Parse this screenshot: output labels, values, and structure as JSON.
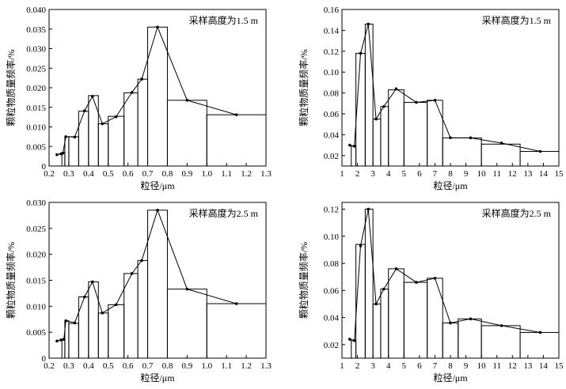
{
  "chart_data": [
    {
      "type": "histogram-line",
      "annotation": "采样高度为1.5 m",
      "xlabel": "粒径/μm",
      "ylabel": "颗粒物质量频率/%",
      "xlim": [
        0.2,
        1.3
      ],
      "ylim": [
        0,
        0.04
      ],
      "xticks": [
        "0.2",
        "0.3",
        "0.4",
        "0.5",
        "0.6",
        "0.7",
        "0.8",
        "0.9",
        "1.0",
        "1.1",
        "1.2",
        "1.3"
      ],
      "yticks": [
        "0",
        "0.005",
        "0.010",
        "0.015",
        "0.020",
        "0.025",
        "0.030",
        "0.035",
        "0.040"
      ],
      "bins": [
        {
          "x0": 0.265,
          "x1": 0.28,
          "y": 0.0035
        },
        {
          "x0": 0.28,
          "x1": 0.3,
          "y": 0.0075
        },
        {
          "x0": 0.3,
          "x1": 0.35,
          "y": 0.0075
        },
        {
          "x0": 0.35,
          "x1": 0.4,
          "y": 0.014
        },
        {
          "x0": 0.4,
          "x1": 0.45,
          "y": 0.018
        },
        {
          "x0": 0.45,
          "x1": 0.5,
          "y": 0.0108
        },
        {
          "x0": 0.5,
          "x1": 0.58,
          "y": 0.0127
        },
        {
          "x0": 0.58,
          "x1": 0.65,
          "y": 0.0187
        },
        {
          "x0": 0.65,
          "x1": 0.7,
          "y": 0.0222
        },
        {
          "x0": 0.7,
          "x1": 0.8,
          "y": 0.0355
        },
        {
          "x0": 0.8,
          "x1": 1.0,
          "y": 0.0168
        },
        {
          "x0": 1.0,
          "x1": 1.3,
          "y": 0.0131
        }
      ],
      "points": [
        [
          0.24,
          0.0029
        ],
        [
          0.26,
          0.0031
        ],
        [
          0.27,
          0.0033
        ],
        [
          0.285,
          0.0075
        ],
        [
          0.33,
          0.0074
        ],
        [
          0.38,
          0.0141
        ],
        [
          0.42,
          0.0178
        ],
        [
          0.47,
          0.0108
        ],
        [
          0.54,
          0.0126
        ],
        [
          0.62,
          0.0188
        ],
        [
          0.67,
          0.0222
        ],
        [
          0.75,
          0.0355
        ],
        [
          0.9,
          0.0168
        ],
        [
          1.15,
          0.0131
        ]
      ]
    },
    {
      "type": "histogram-line",
      "annotation": "采样高度为1.5 m",
      "xlabel": "粒径/μm",
      "ylabel": "颗粒物质量频率/%",
      "xlim": [
        1,
        15
      ],
      "ylim": [
        0.01,
        0.16
      ],
      "xticks": [
        "1",
        "2",
        "3",
        "4",
        "5",
        "6",
        "7",
        "8",
        "9",
        "10",
        "11",
        "12",
        "13",
        "14",
        "15"
      ],
      "yticks": [
        "0.02",
        "0.04",
        "0.06",
        "0.08",
        "0.10",
        "0.12",
        "0.14",
        "0.16"
      ],
      "bins": [
        {
          "x0": 1.6,
          "x1": 1.9,
          "y": 0.029
        },
        {
          "x0": 1.9,
          "x1": 2.5,
          "y": 0.118
        },
        {
          "x0": 2.5,
          "x1": 3.0,
          "y": 0.146
        },
        {
          "x0": 3.0,
          "x1": 3.5,
          "y": 0.055
        },
        {
          "x0": 3.5,
          "x1": 4.0,
          "y": 0.067
        },
        {
          "x0": 4.0,
          "x1": 5.0,
          "y": 0.083
        },
        {
          "x0": 5.0,
          "x1": 6.5,
          "y": 0.071
        },
        {
          "x0": 6.5,
          "x1": 7.5,
          "y": 0.073
        },
        {
          "x0": 7.5,
          "x1": 10.0,
          "y": 0.037
        },
        {
          "x0": 10.0,
          "x1": 12.5,
          "y": 0.031
        },
        {
          "x0": 12.5,
          "x1": 15.0,
          "y": 0.024
        }
      ],
      "points": [
        [
          1.5,
          0.03
        ],
        [
          1.8,
          0.029
        ],
        [
          2.2,
          0.118
        ],
        [
          2.7,
          0.146
        ],
        [
          3.2,
          0.055
        ],
        [
          3.7,
          0.067
        ],
        [
          4.5,
          0.084
        ],
        [
          5.8,
          0.071
        ],
        [
          7.0,
          0.073
        ],
        [
          8.0,
          0.037
        ],
        [
          9.3,
          0.037
        ],
        [
          11.3,
          0.032
        ],
        [
          13.8,
          0.024
        ]
      ]
    },
    {
      "type": "histogram-line",
      "annotation": "采样高度为2.5 m",
      "xlabel": "粒径/μm",
      "ylabel": "颗粒物质量频率/%",
      "xlim": [
        0.2,
        1.3
      ],
      "ylim": [
        0,
        0.03
      ],
      "xticks": [
        "0.2",
        "0.3",
        "0.4",
        "0.5",
        "0.6",
        "0.7",
        "0.8",
        "0.9",
        "1.0",
        "1.1",
        "1.2",
        "1.3"
      ],
      "yticks": [
        "0",
        "0.005",
        "0.010",
        "0.015",
        "0.020",
        "0.025",
        "0.030"
      ],
      "bins": [
        {
          "x0": 0.265,
          "x1": 0.28,
          "y": 0.0037
        },
        {
          "x0": 0.28,
          "x1": 0.3,
          "y": 0.0072
        },
        {
          "x0": 0.3,
          "x1": 0.35,
          "y": 0.0067
        },
        {
          "x0": 0.35,
          "x1": 0.4,
          "y": 0.0118
        },
        {
          "x0": 0.4,
          "x1": 0.45,
          "y": 0.0147
        },
        {
          "x0": 0.45,
          "x1": 0.5,
          "y": 0.0087
        },
        {
          "x0": 0.5,
          "x1": 0.58,
          "y": 0.0103
        },
        {
          "x0": 0.58,
          "x1": 0.65,
          "y": 0.0163
        },
        {
          "x0": 0.65,
          "x1": 0.7,
          "y": 0.0188
        },
        {
          "x0": 0.7,
          "x1": 0.8,
          "y": 0.0285
        },
        {
          "x0": 0.8,
          "x1": 1.0,
          "y": 0.0133
        },
        {
          "x0": 1.0,
          "x1": 1.3,
          "y": 0.0105
        }
      ],
      "points": [
        [
          0.24,
          0.0033
        ],
        [
          0.26,
          0.0035
        ],
        [
          0.275,
          0.0036
        ],
        [
          0.285,
          0.0072
        ],
        [
          0.33,
          0.0068
        ],
        [
          0.38,
          0.0118
        ],
        [
          0.42,
          0.0147
        ],
        [
          0.47,
          0.0087
        ],
        [
          0.54,
          0.0103
        ],
        [
          0.62,
          0.0163
        ],
        [
          0.67,
          0.0188
        ],
        [
          0.75,
          0.0285
        ],
        [
          0.9,
          0.0133
        ],
        [
          1.15,
          0.0105
        ]
      ]
    },
    {
      "type": "histogram-line",
      "annotation": "采样高度为2.5 m",
      "xlabel": "粒径/μm",
      "ylabel": "颗粒物质量频率/%",
      "xlim": [
        1,
        15
      ],
      "ylim": [
        0.01,
        0.125
      ],
      "xticks": [
        "1",
        "2",
        "3",
        "4",
        "5",
        "6",
        "7",
        "8",
        "9",
        "10",
        "11",
        "12",
        "13",
        "14",
        "15"
      ],
      "yticks": [
        "0.02",
        "0.04",
        "0.06",
        "0.08",
        "0.10",
        "0.12"
      ],
      "bins": [
        {
          "x0": 1.6,
          "x1": 1.9,
          "y": 0.023
        },
        {
          "x0": 1.9,
          "x1": 2.5,
          "y": 0.094
        },
        {
          "x0": 2.5,
          "x1": 3.0,
          "y": 0.12
        },
        {
          "x0": 3.0,
          "x1": 3.5,
          "y": 0.05
        },
        {
          "x0": 3.5,
          "x1": 4.0,
          "y": 0.061
        },
        {
          "x0": 4.0,
          "x1": 5.0,
          "y": 0.076
        },
        {
          "x0": 5.0,
          "x1": 6.5,
          "y": 0.066
        },
        {
          "x0": 6.5,
          "x1": 7.5,
          "y": 0.069
        },
        {
          "x0": 7.5,
          "x1": 8.5,
          "y": 0.036
        },
        {
          "x0": 8.5,
          "x1": 10.0,
          "y": 0.039
        },
        {
          "x0": 10.0,
          "x1": 12.5,
          "y": 0.034
        },
        {
          "x0": 12.5,
          "x1": 15.0,
          "y": 0.029
        }
      ],
      "points": [
        [
          1.5,
          0.024
        ],
        [
          1.8,
          0.023
        ],
        [
          2.2,
          0.093
        ],
        [
          2.7,
          0.12
        ],
        [
          3.2,
          0.05
        ],
        [
          3.7,
          0.061
        ],
        [
          4.5,
          0.076
        ],
        [
          5.8,
          0.066
        ],
        [
          7.0,
          0.069
        ],
        [
          8.0,
          0.036
        ],
        [
          9.3,
          0.039
        ],
        [
          11.3,
          0.034
        ],
        [
          13.8,
          0.029
        ]
      ]
    }
  ]
}
